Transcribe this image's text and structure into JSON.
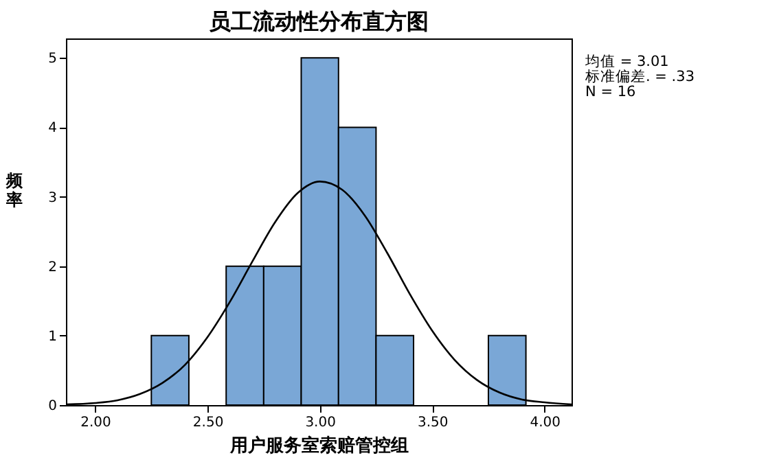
{
  "chart_data": {
    "type": "histogram",
    "title": "员工流动性分布直方图",
    "xlabel": "用户服务室索赔管控组",
    "ylabel": "频率",
    "xlim": [
      1.87,
      4.12
    ],
    "xticks": [
      {
        "value": 2,
        "label": "2.00"
      },
      {
        "value": 2.5,
        "label": "2.50"
      },
      {
        "value": 3,
        "label": "3.00"
      },
      {
        "value": 3.5,
        "label": "3.50"
      },
      {
        "value": 4,
        "label": "4.00"
      }
    ],
    "ylim": [
      0,
      5.28
    ],
    "yticks": [
      0,
      1,
      2,
      3,
      4,
      5
    ],
    "series": [
      {
        "color": "#7aa7d6",
        "bins": [
          2.25,
          2.417,
          2.583,
          2.75,
          2.917,
          3.083,
          3.25,
          3.417,
          3.583,
          3.75,
          3.917
        ],
        "values": [
          1,
          0,
          2,
          2,
          5,
          4,
          1,
          0,
          0,
          1
        ]
      },
      {
        "type": "line",
        "color": "#000000",
        "x": [
          1.87,
          2.0,
          2.1,
          2.2,
          2.3,
          2.4,
          2.5,
          2.6,
          2.7,
          2.8,
          2.9,
          3.0,
          3.1,
          3.2,
          3.3,
          3.4,
          3.5,
          3.6,
          3.7,
          3.8,
          3.9,
          4.0,
          4.12
        ],
        "values": [
          0.01,
          0.03,
          0.07,
          0.16,
          0.32,
          0.58,
          0.98,
          1.49,
          2.07,
          2.63,
          3.05,
          3.22,
          3.1,
          2.73,
          2.19,
          1.6,
          1.07,
          0.65,
          0.36,
          0.18,
          0.08,
          0.04,
          0.01
        ]
      }
    ],
    "annotations": [
      "均值 = 3.01",
      "标准偏差. = .33",
      "N = 16"
    ]
  }
}
